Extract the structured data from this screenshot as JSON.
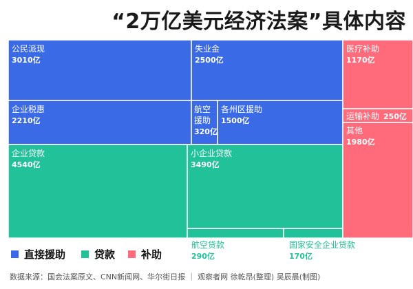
{
  "header": {
    "title": "“2万亿美元经济法案”具体内容"
  },
  "legend": [
    {
      "label": "直接援助",
      "color": "#3b6ae6"
    },
    {
      "label": "贷款",
      "color": "#21c199"
    },
    {
      "label": "补助",
      "color": "#ff6b7a"
    }
  ],
  "chart_data": {
    "type": "treemap",
    "unit": "亿",
    "categories": [
      {
        "name": "直接援助",
        "color": "#3b6ae6",
        "items": [
          {
            "name": "公民派现",
            "value": 3010
          },
          {
            "name": "失业金",
            "value": 2500
          },
          {
            "name": "企业税惠",
            "value": 2210
          },
          {
            "name": "航空援助",
            "value": 320
          },
          {
            "name": "各州区援助",
            "value": 1500
          }
        ]
      },
      {
        "name": "贷款",
        "color": "#21c199",
        "items": [
          {
            "name": "企业贷款",
            "value": 4540
          },
          {
            "name": "小企业贷款",
            "value": 3490
          },
          {
            "name": "航空贷款",
            "value": 290
          },
          {
            "name": "国家安全企业贷款",
            "value": 170
          }
        ]
      },
      {
        "name": "补助",
        "color": "#ff6b7a",
        "items": [
          {
            "name": "医疗补助",
            "value": 1170
          },
          {
            "name": "运输补助",
            "value": 250
          },
          {
            "name": "其他",
            "value": 1980
          }
        ]
      }
    ]
  },
  "footer": {
    "source": "数据来源：国会法案原文、CNN新闻网、华尔街日报 ｜ 观察者网 徐乾昂(整理) 吴辰晨(制图)"
  }
}
